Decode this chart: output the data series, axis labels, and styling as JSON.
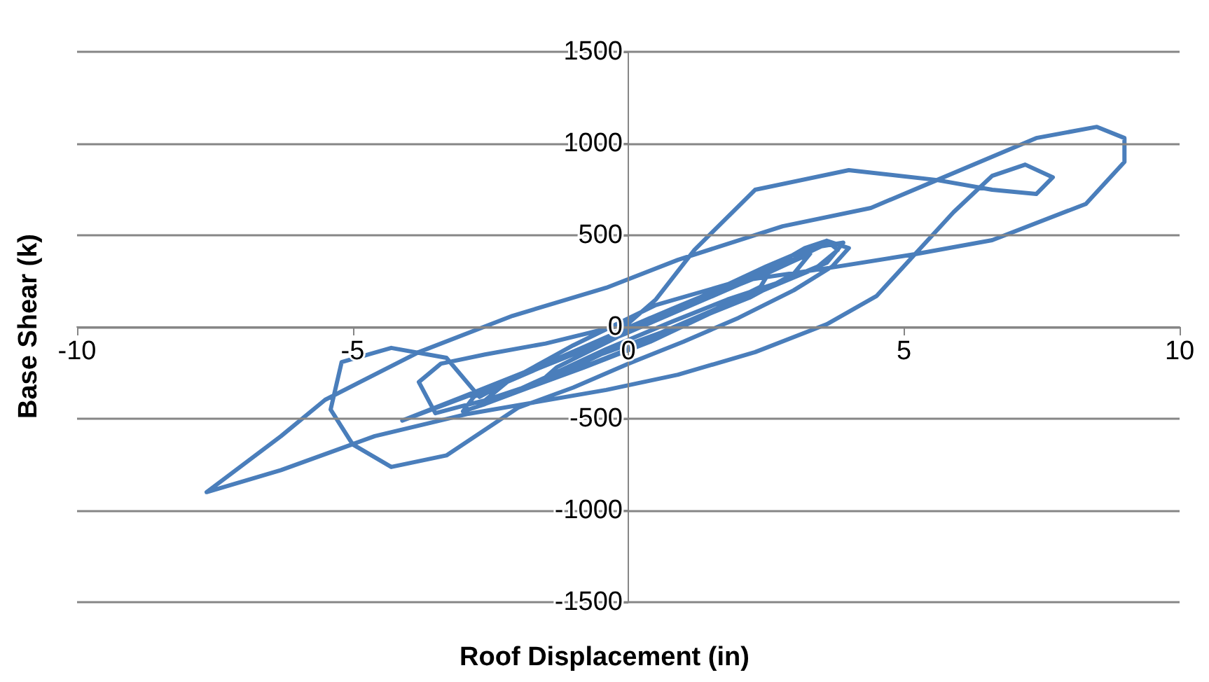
{
  "chart_data": {
    "type": "line",
    "xlabel": "Roof Displacement (in)",
    "ylabel": "Base Shear (k)",
    "xlim": [
      -10,
      10
    ],
    "xticks": [
      -10,
      -5,
      0,
      5,
      10
    ],
    "ylim": [
      -1500,
      1500
    ],
    "yticks": [
      -1500,
      -1000,
      -500,
      0,
      500,
      1000,
      1500
    ],
    "grid": "y",
    "marker": "none",
    "line_style": "solid",
    "series": [
      {
        "color": "#4a7ebb",
        "x": [
          -0.3,
          0.8,
          1.6,
          2.2,
          2.6,
          2.4,
          1.6,
          0.6,
          -0.5,
          -1.2,
          -1.6,
          -1.3,
          -0.5,
          0.5,
          1.5,
          2.5,
          3.0,
          3.3,
          3.0,
          2.2,
          1.2,
          0,
          -1.0,
          -2.0,
          -2.6,
          -2.2,
          -1.2,
          0,
          1.2,
          2.2,
          2.8,
          3.2,
          3.6,
          3.8,
          3.4,
          2.6,
          1.6,
          0.4,
          -0.8,
          -1.8,
          -2.6,
          -3.0,
          -2.8,
          -2.0,
          -1.0,
          0,
          1.0,
          2.0,
          2.8,
          3.5,
          3.9,
          3.6,
          2.8,
          1.8,
          0.8,
          -0.4,
          -1.4,
          -2.2,
          -3.0,
          -3.5,
          -3.8,
          -3.4,
          -2.6,
          -1.5,
          0,
          0.5,
          1.2,
          2.3,
          4.0,
          5.6,
          6.6,
          7.4,
          7.7,
          7.2,
          6.6,
          5.9,
          5.2,
          4.5,
          3.6,
          2.3,
          0.9,
          -0.4,
          -2.9,
          -4.6,
          -6.3,
          -7.65,
          -6.3,
          -5.5,
          -3.8,
          -2.1,
          -0.4,
          0.9,
          2.8,
          4.4,
          5.6,
          7.4,
          8.5,
          9.0,
          9.0,
          8.3,
          6.6,
          5.2,
          3.6,
          2.0,
          0.5,
          -1.0,
          -2.7,
          -3.3,
          -4.3,
          -5.2,
          -5.4,
          -5.0,
          -4.3,
          -3.3,
          -2.6,
          -2.0,
          -1.0,
          0,
          1.0,
          2.0,
          3.0,
          3.7,
          4.0,
          3.6,
          2.5,
          1.0,
          -1.0,
          -2.5,
          -4.1,
          -3.0,
          -1.5,
          0.4
        ],
        "values": [
          -40,
          100,
          200,
          280,
          320,
          220,
          100,
          -30,
          -150,
          -250,
          -300,
          -220,
          -100,
          50,
          170,
          290,
          360,
          400,
          290,
          160,
          40,
          -120,
          -240,
          -340,
          -400,
          -300,
          -170,
          -20,
          130,
          260,
          360,
          430,
          470,
          420,
          320,
          220,
          90,
          -80,
          -220,
          -330,
          -420,
          -460,
          -380,
          -270,
          -150,
          -30,
          100,
          230,
          340,
          440,
          460,
          350,
          250,
          150,
          30,
          -120,
          -260,
          -370,
          -430,
          -470,
          -300,
          -200,
          -150,
          -90,
          20,
          150,
          420,
          748,
          855,
          801,
          748,
          725,
          816,
          885,
          824,
          626,
          397,
          168,
          15,
          -137,
          -260,
          -343,
          -473,
          -595,
          -780,
          -900,
          -595,
          -397,
          -137,
          61,
          214,
          366,
          549,
          649,
          801,
          1030,
          1091,
          1030,
          900,
          671,
          473,
          397,
          320,
          250,
          120,
          -100,
          -381,
          -168,
          -114,
          -191,
          -450,
          -640,
          -763,
          -700,
          -560,
          -440,
          -330,
          -200,
          -80,
          50,
          200,
          330,
          430,
          470,
          330,
          120,
          -140,
          -330,
          -510,
          -380,
          -200,
          50
        ]
      }
    ]
  }
}
